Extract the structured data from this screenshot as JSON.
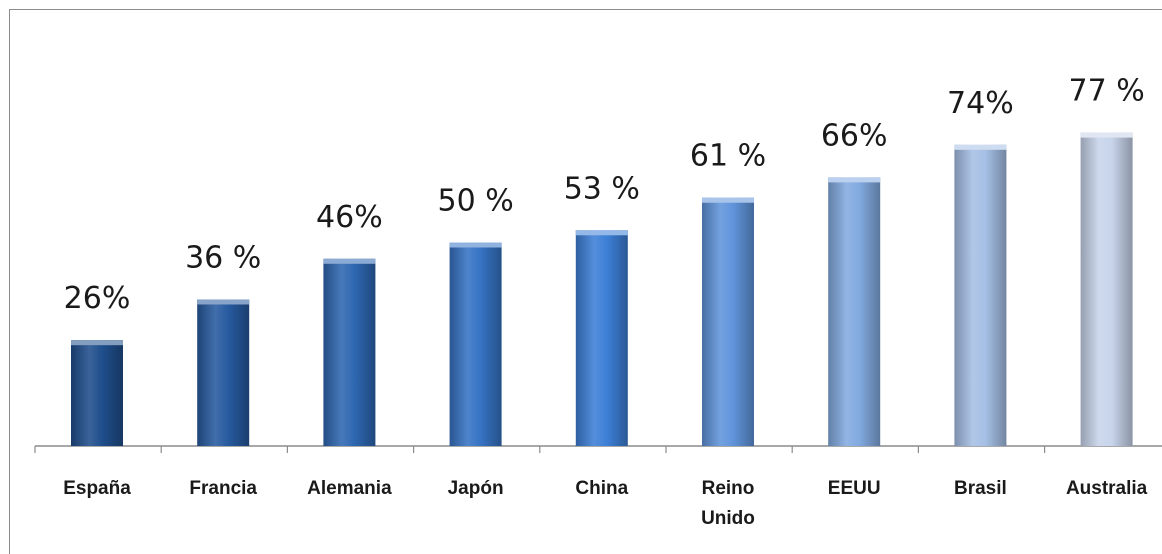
{
  "chart_data": {
    "type": "bar",
    "categories": [
      "España",
      "Francia",
      "Alemania",
      "Japón",
      "China",
      "Reino Unido",
      "EEUU",
      "Brasil",
      "Australia"
    ],
    "category_lines": [
      [
        "España"
      ],
      [
        "Francia"
      ],
      [
        "Alemania"
      ],
      [
        "Japón"
      ],
      [
        "China"
      ],
      [
        "Reino",
        "Unido"
      ],
      [
        "EEUU"
      ],
      [
        "Brasil"
      ],
      [
        "Australia"
      ]
    ],
    "values": [
      26,
      36,
      46,
      50,
      53,
      61,
      66,
      74,
      77
    ],
    "data_labels": [
      "26%",
      "36 %",
      "46%",
      "50 %",
      "53 %",
      "61 %",
      "66%",
      "74%",
      "77 %"
    ],
    "unit": "%",
    "ylim": [
      0,
      100
    ],
    "title": "",
    "xlabel": "",
    "ylabel": "",
    "grid": false,
    "legend": "none",
    "colors": {
      "bar_gradient_start": "#1f4e8c",
      "bar_gradient_mid": "#3d7fd6",
      "bar_gradient_end": "#c7d4ea",
      "axis": "#8c8c8c"
    }
  }
}
